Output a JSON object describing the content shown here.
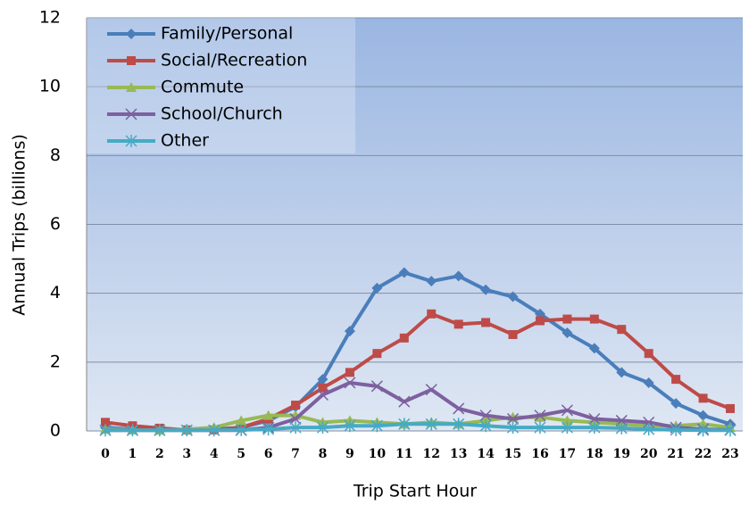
{
  "chart_data": {
    "type": "line",
    "x_label": "Trip Start Hour",
    "y_label": "Annual Trips (billions)",
    "categories": [
      "0",
      "1",
      "2",
      "3",
      "4",
      "5",
      "6",
      "7",
      "8",
      "9",
      "10",
      "11",
      "12",
      "13",
      "14",
      "15",
      "16",
      "17",
      "18",
      "19",
      "20",
      "21",
      "22",
      "23"
    ],
    "ylim": [
      0,
      12
    ],
    "yticks": [
      0,
      2,
      4,
      6,
      8,
      10,
      12
    ],
    "grid": true,
    "legend": "top-left",
    "series": [
      {
        "name": "Family/Personal",
        "color": "#4a7ebb",
        "marker": "diamond",
        "values": [
          0.1,
          0.05,
          0.05,
          0.02,
          0.05,
          0.1,
          0.3,
          0.7,
          1.5,
          2.9,
          4.15,
          4.6,
          4.35,
          4.5,
          4.1,
          3.9,
          3.4,
          2.85,
          2.4,
          1.7,
          1.4,
          0.8,
          0.45,
          0.2
        ]
      },
      {
        "name": "Social/Recreation",
        "color": "#be4b48",
        "marker": "square",
        "values": [
          0.25,
          0.15,
          0.08,
          0.03,
          0.03,
          0.1,
          0.35,
          0.75,
          1.25,
          1.7,
          2.25,
          2.7,
          3.4,
          3.1,
          3.15,
          2.8,
          3.2,
          3.25,
          3.25,
          2.95,
          2.25,
          1.5,
          0.95,
          0.65
        ]
      },
      {
        "name": "Commute",
        "color": "#98b954",
        "marker": "triangle",
        "values": [
          0.05,
          0.03,
          0.02,
          0.05,
          0.1,
          0.3,
          0.45,
          0.45,
          0.25,
          0.3,
          0.25,
          0.2,
          0.25,
          0.2,
          0.3,
          0.4,
          0.4,
          0.3,
          0.25,
          0.2,
          0.15,
          0.15,
          0.2,
          0.1
        ]
      },
      {
        "name": "School/Church",
        "color": "#7d60a0",
        "marker": "x",
        "values": [
          0.02,
          0.02,
          0.02,
          0.02,
          0.02,
          0.02,
          0.1,
          0.35,
          1.05,
          1.4,
          1.3,
          0.85,
          1.2,
          0.65,
          0.45,
          0.35,
          0.45,
          0.6,
          0.35,
          0.3,
          0.25,
          0.1,
          0.05,
          0.03
        ]
      },
      {
        "name": "Other",
        "color": "#46aac5",
        "marker": "star",
        "values": [
          0.02,
          0.02,
          0.02,
          0.02,
          0.02,
          0.03,
          0.05,
          0.1,
          0.1,
          0.15,
          0.15,
          0.2,
          0.2,
          0.2,
          0.15,
          0.1,
          0.1,
          0.1,
          0.1,
          0.08,
          0.05,
          0.03,
          0.02,
          0.02
        ]
      }
    ]
  }
}
